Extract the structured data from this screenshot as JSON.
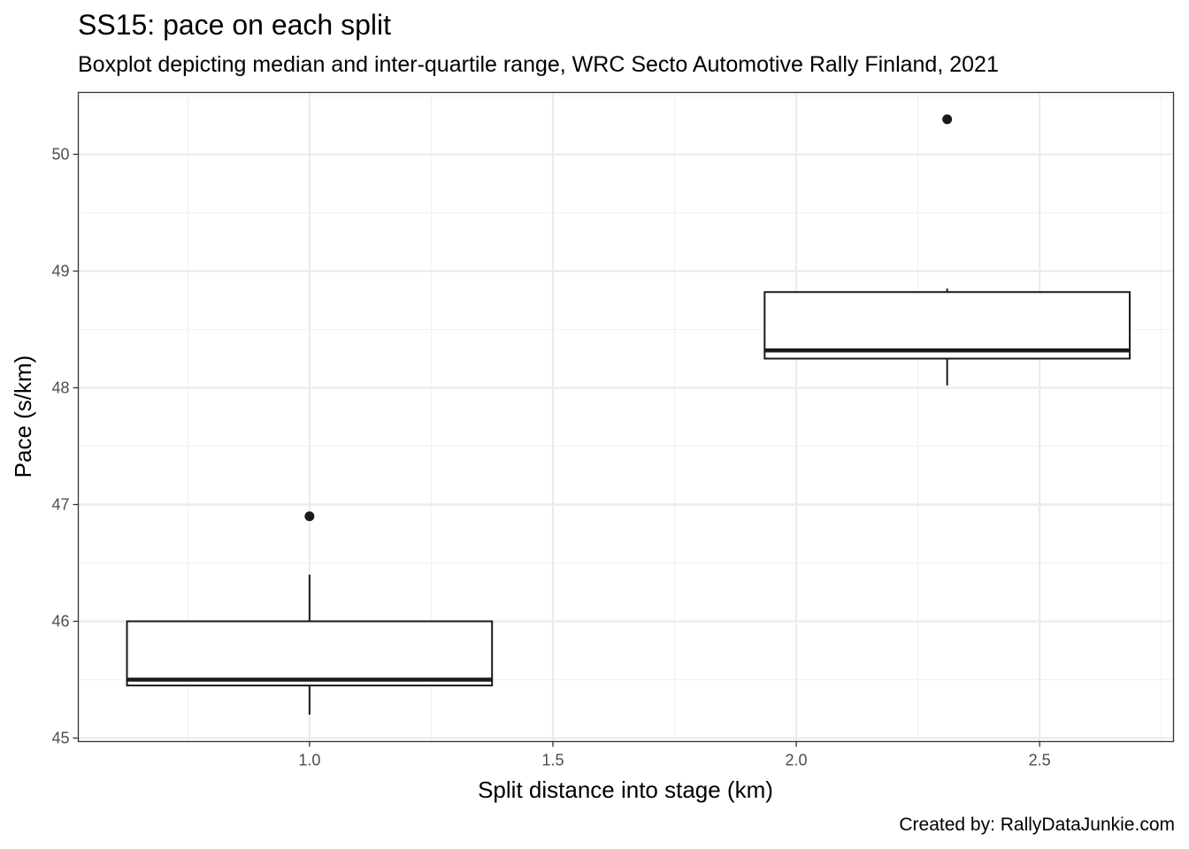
{
  "chart_data": {
    "type": "boxplot",
    "title": "SS15: pace on each split",
    "subtitle": "Boxplot depicting median and inter-quartile range, WRC Secto Automotive Rally Finland, 2021",
    "caption": "Created by: RallyDataJunkie.com",
    "xlabel": "Split distance into stage (km)",
    "ylabel": "Pace (s/km)",
    "xlim": [
      0.525,
      2.775
    ],
    "ylim": [
      44.97,
      50.53
    ],
    "x_ticks": [
      1.0,
      1.5,
      2.0,
      2.5
    ],
    "x_tick_labels": [
      "1.0",
      "1.5",
      "2.0",
      "2.5"
    ],
    "y_ticks": [
      45,
      46,
      47,
      48,
      49,
      50
    ],
    "y_tick_labels": [
      "45",
      "46",
      "47",
      "48",
      "49",
      "50"
    ],
    "grid": true,
    "boxes": [
      {
        "x": 1.0,
        "width": 0.75,
        "q1": 45.45,
        "median": 45.5,
        "q3": 46.0,
        "whisker_low": 45.2,
        "whisker_high": 46.4,
        "outliers": [
          46.9
        ]
      },
      {
        "x": 2.31,
        "width": 0.75,
        "q1": 48.25,
        "median": 48.32,
        "q3": 48.82,
        "whisker_low": 48.02,
        "whisker_high": 48.85,
        "outliers": [
          50.3
        ]
      }
    ],
    "colors": {
      "box_fill": "#ffffff",
      "box_line": "#1a1a1a",
      "outlier": "#1a1a1a",
      "grid_major": "#ebebeb",
      "grid_minor": "#f2f2f2",
      "panel_border": "#333333",
      "tick_label": "#4d4d4d"
    }
  }
}
